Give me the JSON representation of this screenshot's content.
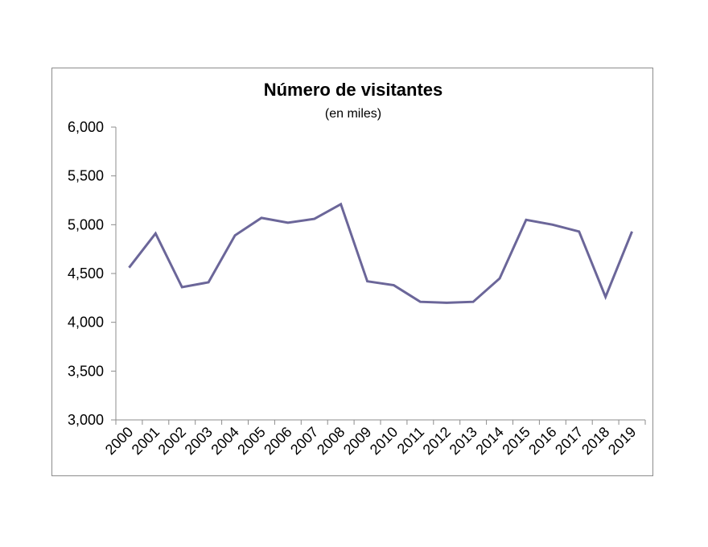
{
  "chart_data": {
    "type": "line",
    "title": "Número de visitantes",
    "subtitle": "(en miles)",
    "xlabel": "",
    "ylabel": "",
    "categories": [
      "2000",
      "2001",
      "2002",
      "2003",
      "2004",
      "2005",
      "2006",
      "2007",
      "2008",
      "2009",
      "2010",
      "2011",
      "2012",
      "2013",
      "2014",
      "2015",
      "2016",
      "2017",
      "2018",
      "2019"
    ],
    "series": [
      {
        "values": [
          4560,
          4910,
          4360,
          4410,
          4890,
          5070,
          5020,
          5060,
          5210,
          4420,
          4380,
          4210,
          4200,
          4210,
          4450,
          5050,
          5000,
          4930,
          4260,
          4930
        ]
      }
    ],
    "ylim": [
      3000,
      6000
    ],
    "yticks": [
      3000,
      3500,
      4000,
      4500,
      5000,
      5500,
      6000
    ],
    "ytick_labels": [
      "3,000",
      "3,500",
      "4,000",
      "4,500",
      "5,000",
      "5,500",
      "6,000"
    ],
    "grid": false,
    "legend": "none",
    "line_color": "#6b6699"
  }
}
